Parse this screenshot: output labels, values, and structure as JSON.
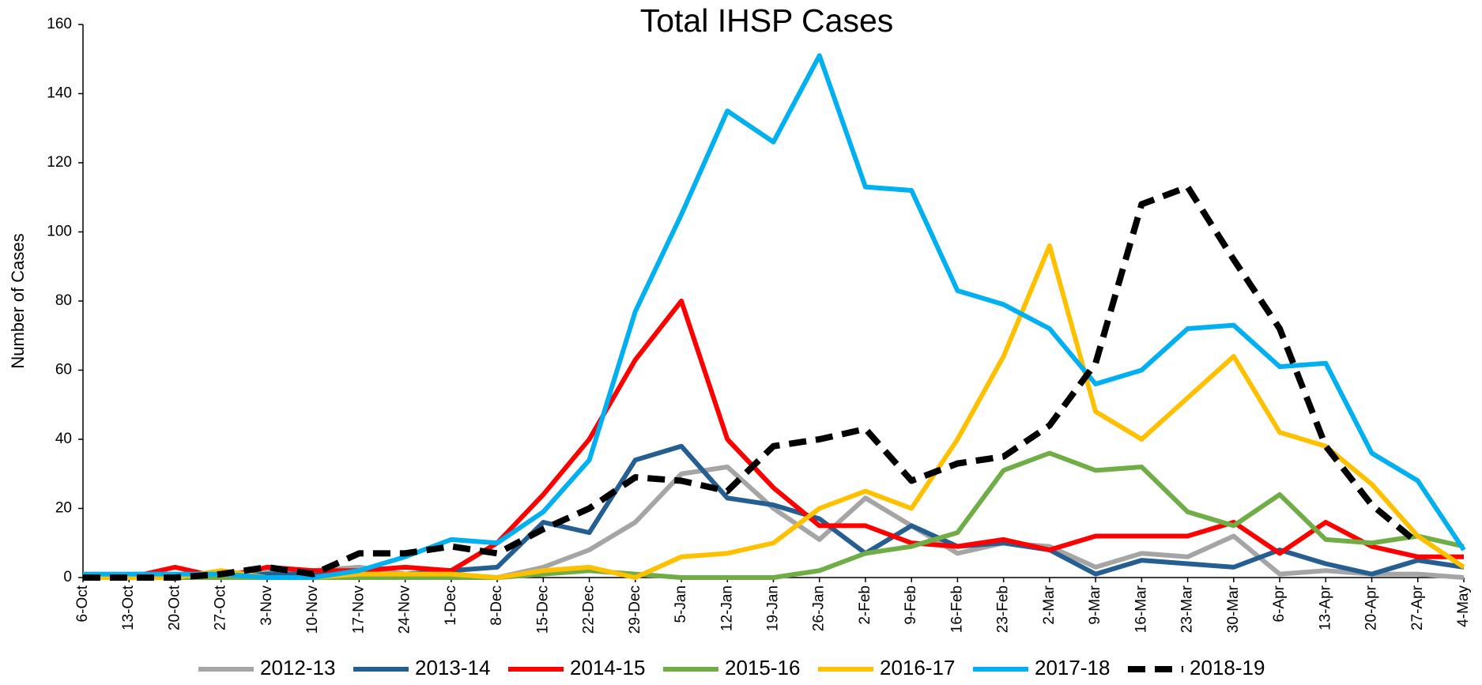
{
  "chart_data": {
    "type": "line",
    "title": "Total IHSP Cases",
    "y_label": "Number of Cases",
    "categories": [
      "6-Oct",
      "13-Oct",
      "20-Oct",
      "27-Oct",
      "3-Nov",
      "10-Nov",
      "17-Nov",
      "24-Nov",
      "1-Dec",
      "8-Dec",
      "15-Dec",
      "22-Dec",
      "29-Dec",
      "5-Jan",
      "12-Jan",
      "19-Jan",
      "26-Jan",
      "2-Feb",
      "9-Feb",
      "16-Feb",
      "23-Feb",
      "2-Mar",
      "9-Mar",
      "16-Mar",
      "23-Mar",
      "30-Mar",
      "6-Apr",
      "13-Apr",
      "20-Apr",
      "27-Apr",
      "4-May"
    ],
    "series": [
      {
        "name": "2012-13",
        "color": "#a5a5a5",
        "values": [
          0,
          0,
          0,
          1,
          2,
          2,
          3,
          1,
          1,
          0,
          3,
          8,
          16,
          30,
          32,
          20,
          11,
          23,
          15,
          7,
          10,
          9,
          3,
          7,
          6,
          12,
          1,
          2,
          1,
          1,
          0
        ]
      },
      {
        "name": "2013-14",
        "color": "#255e91",
        "values": [
          0,
          0,
          0,
          0,
          1,
          1,
          1,
          1,
          2,
          3,
          16,
          13,
          34,
          38,
          23,
          21,
          17,
          7,
          15,
          9,
          10,
          8,
          1,
          5,
          4,
          3,
          8,
          4,
          1,
          5,
          3
        ]
      },
      {
        "name": "2014-15",
        "color": "#ff0000",
        "values": [
          0,
          0,
          3,
          0,
          3,
          2,
          2,
          3,
          2,
          10,
          24,
          40,
          63,
          80,
          40,
          26,
          15,
          15,
          10,
          9,
          11,
          8,
          12,
          12,
          12,
          16,
          7,
          16,
          9,
          6,
          6
        ]
      },
      {
        "name": "2015-16",
        "color": "#70ad47",
        "values": [
          0,
          0,
          0,
          0,
          0,
          0,
          0,
          0,
          0,
          0,
          1,
          2,
          1,
          0,
          0,
          0,
          2,
          7,
          9,
          13,
          31,
          36,
          31,
          32,
          19,
          15,
          24,
          11,
          10,
          12,
          9
        ]
      },
      {
        "name": "2016-17",
        "color": "#ffc000",
        "values": [
          0,
          0,
          0,
          2,
          0,
          0,
          1,
          1,
          1,
          0,
          2,
          3,
          0,
          6,
          7,
          10,
          20,
          25,
          20,
          40,
          64,
          96,
          48,
          40,
          52,
          64,
          42,
          38,
          27,
          12,
          3
        ]
      },
      {
        "name": "2017-18",
        "color": "#00b0f0",
        "values": [
          1,
          1,
          1,
          1,
          0,
          0,
          2,
          6,
          11,
          10,
          19,
          34,
          77,
          105,
          135,
          126,
          151,
          113,
          112,
          83,
          79,
          72,
          56,
          60,
          72,
          73,
          61,
          62,
          36,
          28,
          8
        ]
      },
      {
        "name": "2018-19",
        "color": "#000000",
        "dashed": true,
        "values": [
          0,
          0,
          0,
          1,
          3,
          1,
          7,
          7,
          9,
          7,
          14,
          20,
          29,
          28,
          25,
          38,
          40,
          43,
          28,
          33,
          35,
          44,
          62,
          108,
          113,
          92,
          72,
          38,
          21,
          10,
          null
        ]
      }
    ],
    "ylim": [
      0,
      160
    ],
    "yticks": [
      0,
      20,
      40,
      60,
      80,
      100,
      120,
      140,
      160
    ],
    "legend": "bottom"
  }
}
